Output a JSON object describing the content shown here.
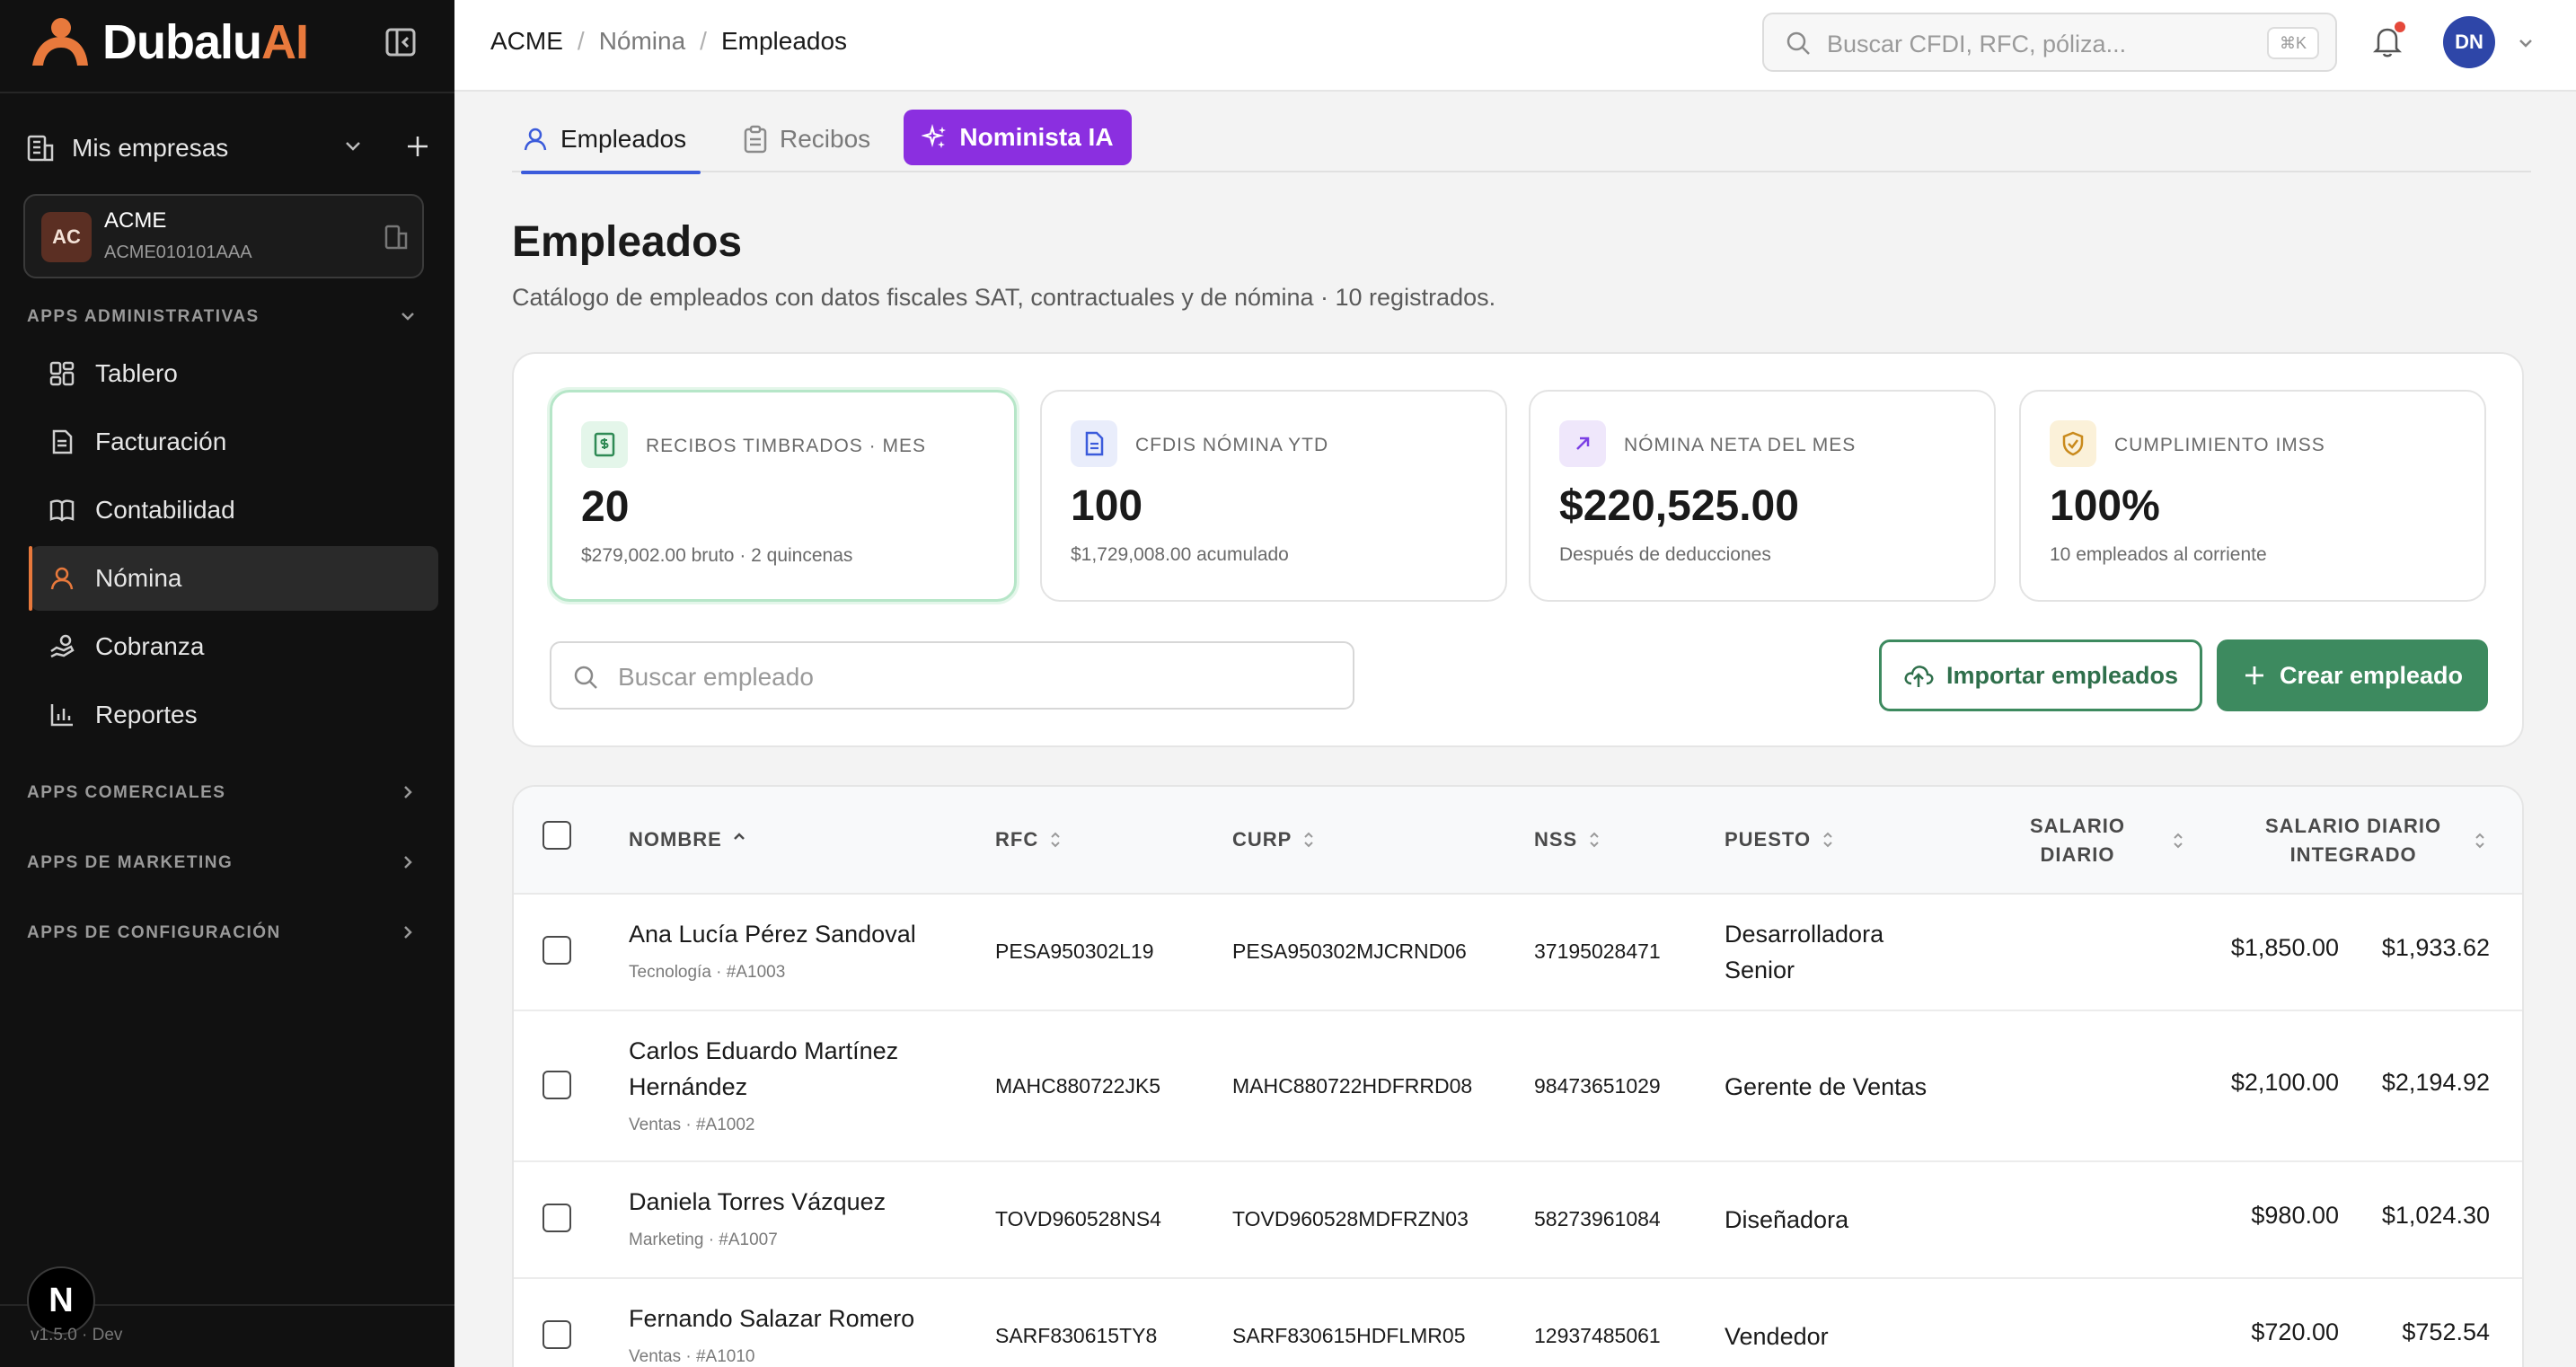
{
  "brand": {
    "name_main": "Dubalu",
    "name_accent": "AI",
    "accent_color": "#e8793c"
  },
  "sidebar": {
    "companies_label": "Mis empresas",
    "company": {
      "initials": "AC",
      "name": "ACME",
      "rfc": "ACME010101AAA"
    },
    "sections": {
      "admin": "APPS ADMINISTRATIVAS",
      "comercial": "APPS COMERCIALES",
      "marketing": "APPS DE MARKETING",
      "config": "APPS DE CONFIGURACIÓN"
    },
    "items": [
      {
        "label": "Tablero",
        "icon": "dashboard-icon"
      },
      {
        "label": "Facturación",
        "icon": "invoice-icon"
      },
      {
        "label": "Contabilidad",
        "icon": "book-icon"
      },
      {
        "label": "Nómina",
        "icon": "user-icon",
        "active": true
      },
      {
        "label": "Cobranza",
        "icon": "hand-coins-icon"
      },
      {
        "label": "Reportes",
        "icon": "chart-icon"
      }
    ],
    "n_badge": "N",
    "version": "v1.5.0 · Dev"
  },
  "header": {
    "breadcrumb": [
      "ACME",
      "Nómina",
      "Empleados"
    ],
    "search_placeholder": "Buscar CFDI, RFC, póliza...",
    "shortcut": "⌘K",
    "avatar": "DN"
  },
  "tabs": [
    {
      "label": "Empleados",
      "active": true
    },
    {
      "label": "Recibos"
    },
    {
      "label": "Nominista IA"
    }
  ],
  "page": {
    "title": "Empleados",
    "subtitle": "Catálogo de empleados con datos fiscales SAT, contractuales y de nómina · 10 registrados."
  },
  "stats": [
    {
      "label": "RECIBOS TIMBRADOS · MES",
      "value": "20",
      "note": "$279,002.00 bruto · 2 quincenas",
      "icon": "receipt-icon",
      "color": "#2f8a55"
    },
    {
      "label": "CFDIS NÓMINA YTD",
      "value": "100",
      "note": "$1,729,008.00 acumulado",
      "icon": "document-icon",
      "color": "#3b5bdb"
    },
    {
      "label": "NÓMINA NETA DEL MES",
      "value": "$220,525.00",
      "note": "Después de deducciones",
      "icon": "arrow-up-right-icon",
      "color": "#7b3fe4"
    },
    {
      "label": "CUMPLIMIENTO IMSS",
      "value": "100%",
      "note": "10 empleados al corriente",
      "icon": "shield-check-icon",
      "color": "#c98a1c"
    }
  ],
  "toolbar": {
    "search_placeholder": "Buscar empleado",
    "import_label": "Importar empleados",
    "create_label": "Crear empleado"
  },
  "table": {
    "columns": {
      "nombre": "NOMBRE",
      "rfc": "RFC",
      "curp": "CURP",
      "nss": "NSS",
      "puesto": "PUESTO",
      "salario_l1": "SALARIO",
      "salario_l2": "DIARIO",
      "sdi_l1": "SALARIO DIARIO",
      "sdi_l2": "INTEGRADO"
    },
    "rows": [
      {
        "name1": "Ana Lucía Pérez Sandoval",
        "name2": "",
        "meta": "Tecnología · #A1003",
        "rfc": "PESA950302L19",
        "curp": "PESA950302MJCRND06",
        "nss": "37195028471",
        "puesto1": "Desarrolladora",
        "puesto2": "Senior",
        "salario": "$1,850.00",
        "sdi": "$1,933.62"
      },
      {
        "name1": "Carlos Eduardo Martínez",
        "name2": "Hernández",
        "meta": "Ventas · #A1002",
        "rfc": "MAHC880722JK5",
        "curp": "MAHC880722HDFRRD08",
        "nss": "98473651029",
        "puesto1": "Gerente de Ventas",
        "puesto2": "",
        "salario": "$2,100.00",
        "sdi": "$2,194.92"
      },
      {
        "name1": "Daniela Torres Vázquez",
        "name2": "",
        "meta": "Marketing · #A1007",
        "rfc": "TOVD960528NS4",
        "curp": "TOVD960528MDFRZN03",
        "nss": "58273961084",
        "puesto1": "Diseñadora",
        "puesto2": "",
        "salario": "$980.00",
        "sdi": "$1,024.30"
      },
      {
        "name1": "Fernando Salazar Romero",
        "name2": "",
        "meta": "Ventas · #A1010",
        "rfc": "SARF830615TY8",
        "curp": "SARF830615HDFLMR05",
        "nss": "12937485061",
        "puesto1": "Vendedor",
        "puesto2": "",
        "salario": "$720.00",
        "sdi": "$752.54"
      }
    ]
  }
}
